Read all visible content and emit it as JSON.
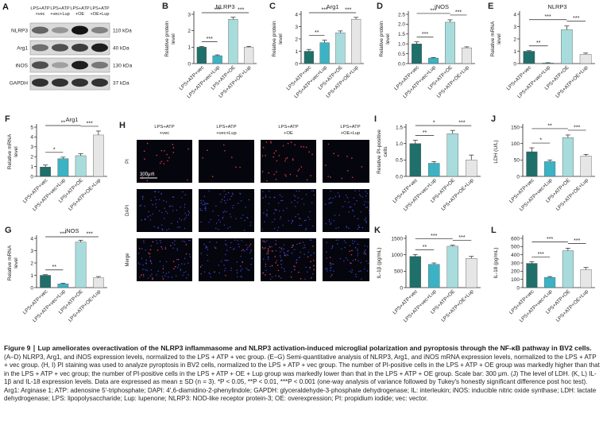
{
  "figure_title": "Figure 9 ∣ Lup ameliorates overactivation of the NLRP3 inflammasome and NLRP3 activation-induced microglial polarization and pyroptosis through the NF-κB pathway in BV2 cells.",
  "caption": "(A–D) NLRP3, Arg1, and iNOS expression levels, normalized to the LPS + ATP + vec group. (E–G) Semi-quantitative analysis of NLRP3, Arg1, and iNOS mRNA expression levels, normalized to the LPS + ATP + vec group. (H, I) PI staining was used to analyze pyroptosis in BV2 cells, normalized to the LPS + ATP + vec group. The number of PI-positive cells in the LPS + ATP + OE group was markedly higher than that in the LPS + ATP + vec group; the number of PI-positive cells in the LPS + ATP + OE + Lup group was markedly lower than that in the LPS + ATP + OE group. Scale bar: 300 μm. (J) The level of LDH. (K, L) IL-1β and IL-18 expression levels. Data are expressed as mean ± SD (n = 3). *P < 0.05, **P < 0.01, ***P < 0.001 (one-way analysis of variance followed by Tukey's honestly significant difference post hoc test). Arg1: Arginase 1; ATP: adenosine 5′-triphosphate; DAPI: 4′,6-diamidino-2-phenylindole; GAPDH: glyceraldehyde-3-phosphate dehydrogenase; IL: interleukin; iNOS: inducible nitric oxide synthase; LDH: lactate dehydrogenase; LPS: lipopolysaccharide; Lup: lupenone; NLRP3: NOD-like receptor protein-3; OE: overexpression; PI: propidium iodide; vec: vector.",
  "panel_a": {
    "letter": "A",
    "group_labels": [
      [
        "LPS+ATP",
        "+vec"
      ],
      [
        "LPS+ATP",
        "+vec+Lup"
      ],
      [
        "LPS+ATP",
        "+OE"
      ],
      [
        "LPS+ATP",
        "+OE+Lup"
      ]
    ],
    "bands": [
      {
        "name": "NLRP3",
        "size": "110 kDa",
        "intensity": [
          0.6,
          0.35,
          1.0,
          0.45
        ]
      },
      {
        "name": "Arg1",
        "size": "40 kDa",
        "intensity": [
          0.55,
          0.7,
          0.8,
          0.95
        ]
      },
      {
        "name": "iNOS",
        "size": "130 kDa",
        "intensity": [
          0.7,
          0.3,
          0.95,
          0.5
        ]
      },
      {
        "name": "GAPDH",
        "size": "37 kDa",
        "intensity": [
          0.85,
          0.85,
          0.85,
          0.85
        ]
      }
    ]
  },
  "panel_h": {
    "letter": "H",
    "col_labels": [
      [
        "LPS+ATP",
        "+vec"
      ],
      [
        "LPS+ATP",
        "+vec+Lup"
      ],
      [
        "LPS+ATP",
        "+OE"
      ],
      [
        "LPS+ATP",
        "+OE+Lup"
      ]
    ],
    "row_labels": [
      "PI",
      "DAPI",
      "Merge"
    ],
    "scale_bar": "300μm",
    "pi_cells": [
      22,
      8,
      40,
      12
    ],
    "dapi_cells": 70
  },
  "colors": {
    "bar_fills": [
      "#1f6f6a",
      "#3bb3c4",
      "#a8dcdc",
      "#e6e6e6"
    ],
    "sig_text": "#222222"
  },
  "chart_data": [
    {
      "id": "B",
      "type": "bar",
      "title": "NLRP3",
      "ylabel": "Relative protein level",
      "categories": [
        "LPS+ATP+vec",
        "LPS+ATP+vec+Lup",
        "LPS+ATP+OE",
        "LPS+ATP+OE+Lup"
      ],
      "values": [
        1.0,
        0.48,
        2.7,
        1.0
      ],
      "errors": [
        0.04,
        0.05,
        0.12,
        0.05
      ],
      "ylim": [
        0,
        3
      ],
      "yticks": [
        "0",
        "1",
        "2",
        "3"
      ],
      "sig": [
        {
          "a": 0,
          "b": 1,
          "t": "***"
        },
        {
          "a": 0,
          "b": 2,
          "t": "***"
        },
        {
          "a": 2,
          "b": 3,
          "t": "***"
        }
      ]
    },
    {
      "id": "C",
      "type": "bar",
      "title": "Arg1",
      "ylabel": "Relative protein level",
      "categories": [
        "LPS+ATP+vec",
        "LPS+ATP+vec+Lup",
        "LPS+ATP+OE",
        "LPS+ATP+OE+Lup"
      ],
      "values": [
        1.0,
        1.7,
        2.5,
        3.6
      ],
      "errors": [
        0.15,
        0.2,
        0.15,
        0.15
      ],
      "ylim": [
        0,
        4
      ],
      "yticks": [
        "0",
        "1",
        "2",
        "3",
        "4"
      ],
      "sig": [
        {
          "a": 0,
          "b": 1,
          "t": "**"
        },
        {
          "a": 0,
          "b": 2,
          "t": "***"
        },
        {
          "a": 2,
          "b": 3,
          "t": "***"
        }
      ]
    },
    {
      "id": "D",
      "type": "bar",
      "title": "iNOS",
      "ylabel": "Relative protein level",
      "categories": [
        "LPS+ATP+vec",
        "LPS+ATP+vec+Lup",
        "LPS+ATP+OE",
        "LPS+ATP+OE+Lup"
      ],
      "values": [
        1.0,
        0.28,
        2.1,
        0.8
      ],
      "errors": [
        0.1,
        0.03,
        0.12,
        0.05
      ],
      "ylim": [
        0,
        2.5
      ],
      "yticks": [
        "0.0",
        "0.5",
        "1.0",
        "1.5",
        "2.0",
        "2.5"
      ],
      "sig": [
        {
          "a": 0,
          "b": 1,
          "t": "***"
        },
        {
          "a": 0,
          "b": 2,
          "t": "***"
        },
        {
          "a": 2,
          "b": 3,
          "t": "***"
        }
      ]
    },
    {
      "id": "E",
      "type": "bar",
      "title": "NLRP3",
      "ylabel": "Relative mRNA level",
      "categories": [
        "LPS+ATP+vec",
        "LPS+ATP+vec+Lup",
        "LPS+ATP+OE",
        "LPS+ATP+OE+Lup"
      ],
      "values": [
        1.0,
        0.05,
        2.75,
        0.75
      ],
      "errors": [
        0.05,
        0.02,
        0.3,
        0.1
      ],
      "ylim": [
        0,
        4
      ],
      "yticks": [
        "0",
        "1",
        "2",
        "3",
        "4"
      ],
      "sig": [
        {
          "a": 0,
          "b": 1,
          "t": "**"
        },
        {
          "a": 0,
          "b": 2,
          "t": "***"
        },
        {
          "a": 2,
          "b": 3,
          "t": "***"
        }
      ]
    },
    {
      "id": "F",
      "type": "bar",
      "title": "Arg1",
      "ylabel": "Relative mRNA level",
      "categories": [
        "LPS+ATP+vec",
        "LPS+ATP+vec+Lup",
        "LPS+ATP+OE",
        "LPS+ATP+OE+Lup"
      ],
      "values": [
        0.95,
        1.8,
        2.1,
        4.2
      ],
      "errors": [
        0.2,
        0.15,
        0.2,
        0.4
      ],
      "ylim": [
        0,
        5
      ],
      "yticks": [
        "0",
        "1",
        "2",
        "3",
        "4",
        "5"
      ],
      "sig": [
        {
          "a": 0,
          "b": 1,
          "t": "*"
        },
        {
          "a": 0,
          "b": 2,
          "t": "**"
        },
        {
          "a": 2,
          "b": 3,
          "t": "***"
        }
      ]
    },
    {
      "id": "G",
      "type": "bar",
      "title": "iNOS",
      "ylabel": "Relative mRNA level",
      "categories": [
        "LPS+ATP+vec",
        "LPS+ATP+vec+Lup",
        "LPS+ATP+OE",
        "LPS+ATP+OE+Lup"
      ],
      "values": [
        1.0,
        0.3,
        3.7,
        0.8
      ],
      "errors": [
        0.05,
        0.05,
        0.15,
        0.1
      ],
      "ylim": [
        0,
        4
      ],
      "yticks": [
        "0",
        "1",
        "2",
        "3",
        "4"
      ],
      "sig": [
        {
          "a": 0,
          "b": 1,
          "t": "**"
        },
        {
          "a": 0,
          "b": 2,
          "t": "***"
        },
        {
          "a": 2,
          "b": 3,
          "t": "***"
        }
      ]
    },
    {
      "id": "I",
      "type": "bar",
      "title": "",
      "ylabel": "Relative PI-positive cells",
      "categories": [
        "LPS+ATP+vec",
        "LPS+ATP+vec+Lup",
        "LPS+ATP+OE",
        "LPS+ATP+OE+Lup"
      ],
      "values": [
        1.0,
        0.4,
        1.3,
        0.5
      ],
      "errors": [
        0.1,
        0.05,
        0.1,
        0.15
      ],
      "ylim": [
        0,
        1.5
      ],
      "yticks": [
        "0.0",
        "0.5",
        "1.0",
        "1.5"
      ],
      "sig": [
        {
          "a": 0,
          "b": 1,
          "t": "**"
        },
        {
          "a": 0,
          "b": 2,
          "t": "*"
        },
        {
          "a": 2,
          "b": 3,
          "t": "***"
        }
      ]
    },
    {
      "id": "J",
      "type": "bar",
      "title": "",
      "ylabel": "LDH (U/L)",
      "categories": [
        "LPS+ATP+vec",
        "LPS+ATP+vec+Lup",
        "LPS+ATP+OE",
        "LPS+ATP+OE+Lup"
      ],
      "values": [
        75,
        45,
        118,
        62
      ],
      "errors": [
        12,
        5,
        8,
        5
      ],
      "ylim": [
        0,
        150
      ],
      "yticks": [
        "0",
        "50",
        "100",
        "150"
      ],
      "sig": [
        {
          "a": 0,
          "b": 1,
          "t": "*"
        },
        {
          "a": 0,
          "b": 2,
          "t": "**"
        },
        {
          "a": 2,
          "b": 3,
          "t": "***"
        }
      ]
    },
    {
      "id": "K",
      "type": "bar",
      "title": "",
      "ylabel": "IL-1β (pg/mL)",
      "categories": [
        "LPS+ATP+vec",
        "LPS+ATP+vec+Lup",
        "LPS+ATP+OE",
        "LPS+ATP+OE+Lup"
      ],
      "values": [
        950,
        710,
        1260,
        890
      ],
      "errors": [
        60,
        40,
        30,
        60
      ],
      "ylim": [
        0,
        1500
      ],
      "yticks": [
        "0",
        "500",
        "1000",
        "1500"
      ],
      "sig": [
        {
          "a": 0,
          "b": 1,
          "t": "**"
        },
        {
          "a": 0,
          "b": 2,
          "t": "***"
        },
        {
          "a": 2,
          "b": 3,
          "t": "***"
        }
      ]
    },
    {
      "id": "L",
      "type": "bar",
      "title": "",
      "ylabel": "IL-18 (pg/mL)",
      "categories": [
        "LPS+ATP+vec",
        "LPS+ATP+vec+Lup",
        "LPS+ATP+OE",
        "LPS+ATP+OE+Lup"
      ],
      "values": [
        295,
        125,
        450,
        220
      ],
      "errors": [
        20,
        10,
        30,
        25
      ],
      "ylim": [
        0,
        600
      ],
      "yticks": [
        "0",
        "100",
        "200",
        "300",
        "400",
        "500",
        "600"
      ],
      "sig": [
        {
          "a": 0,
          "b": 1,
          "t": "***"
        },
        {
          "a": 0,
          "b": 2,
          "t": "***"
        },
        {
          "a": 2,
          "b": 3,
          "t": "***"
        }
      ]
    }
  ]
}
